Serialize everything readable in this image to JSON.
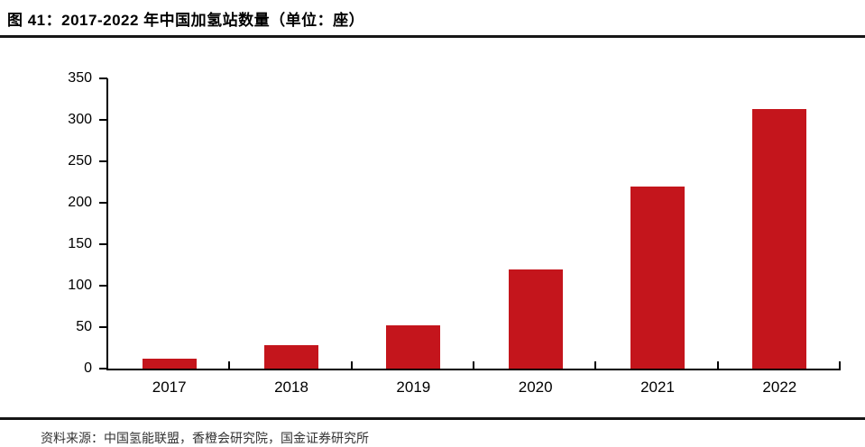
{
  "figure": {
    "title": "图 41：2017-2022 年中国加氢站数量（单位：座）",
    "footer_source": "资料来源：中国氢能联盟，香橙会研究院，国金证券研究所"
  },
  "chart_data": {
    "type": "bar",
    "title": "2017-2022 年中国加氢站数量（单位：座）",
    "categories": [
      "2017",
      "2018",
      "2019",
      "2020",
      "2021",
      "2022"
    ],
    "values": [
      12,
      28,
      52,
      120,
      220,
      313
    ],
    "xlabel": "",
    "ylabel": "",
    "ylim": [
      0,
      350
    ],
    "yticks": [
      0,
      50,
      100,
      150,
      200,
      250,
      300,
      350
    ],
    "grid": false,
    "legend": "none",
    "bar_color": "#C4151C"
  },
  "colors": {
    "bar": "#C4151C",
    "axis": "#000000",
    "rule": "#161616",
    "title_text": "#000000",
    "footer_text": "#333333"
  }
}
